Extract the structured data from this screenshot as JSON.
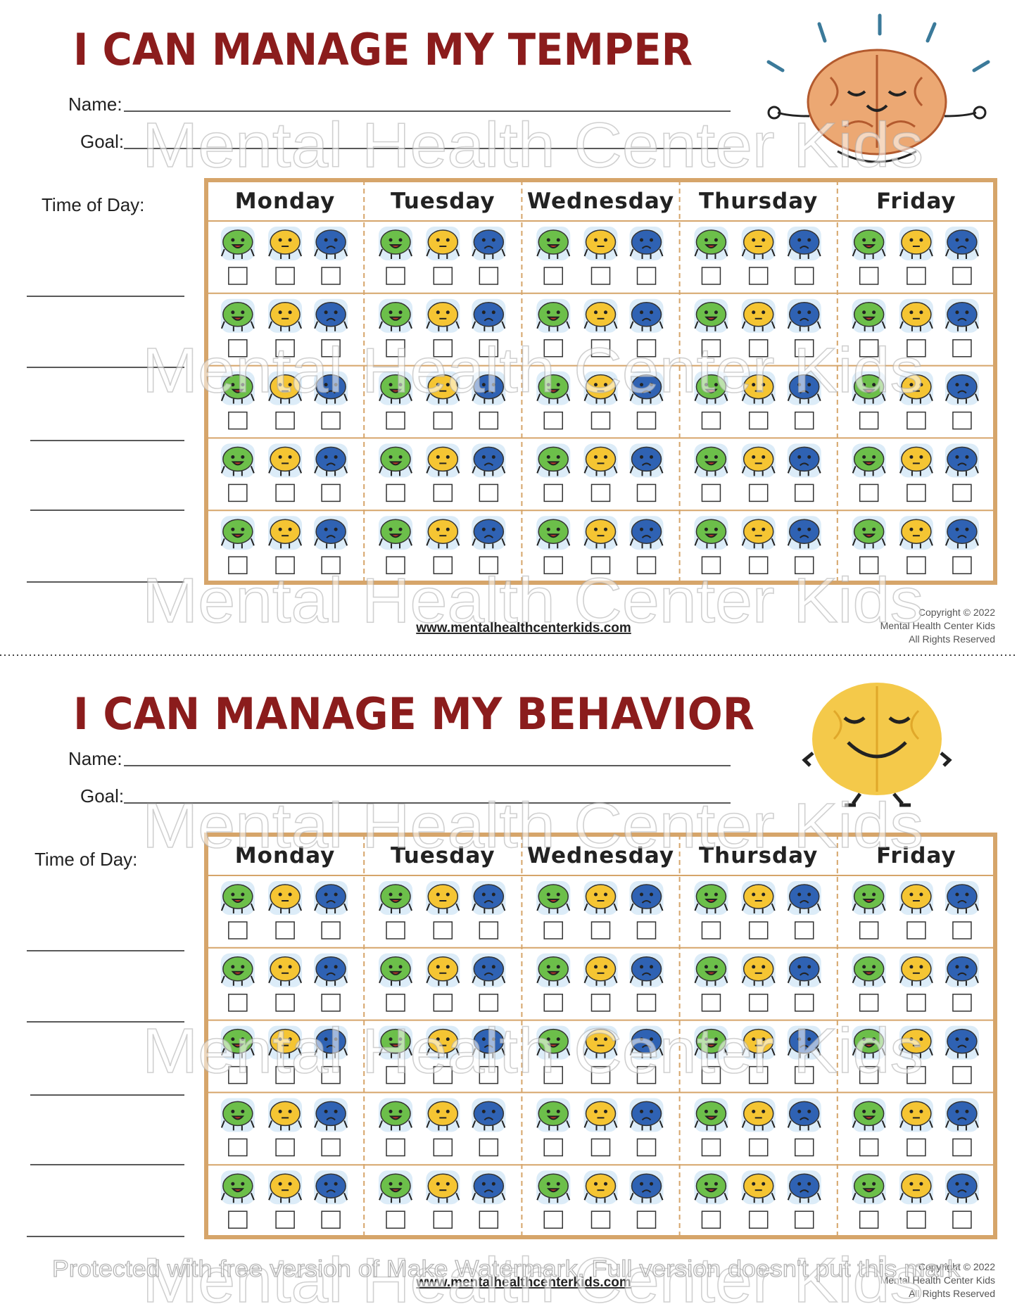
{
  "sheets": [
    {
      "title": "I CAN MANAGE MY TEMPER",
      "name_label": "Name:",
      "goal_label": "Goal:",
      "time_label": "Time of Day:",
      "days": [
        "Monday",
        "Tuesday",
        "Wednesday",
        "Thursday",
        "Friday"
      ],
      "website": "www.mentalhealthcenterkids.com",
      "copyright": [
        "Copyright © 2022",
        "Mental Health Center Kids",
        "All Rights Reserved"
      ]
    },
    {
      "title": "I CAN MANAGE MY BEHAVIOR",
      "name_label": "Name:",
      "goal_label": "Goal:",
      "time_label": "Time of Day:",
      "days": [
        "Monday",
        "Tuesday",
        "Wednesday",
        "Thursday",
        "Friday"
      ],
      "website": "www.mentalhealthcenterkids.com",
      "copyright": [
        "Copyright © 2022",
        "Mental Health Center Kids",
        "All Rights Reserved"
      ]
    }
  ],
  "watermark": "Mental Health Center Kids",
  "notice": "Protected with free version of Make Watermark. Full version doesn't put this mark"
}
